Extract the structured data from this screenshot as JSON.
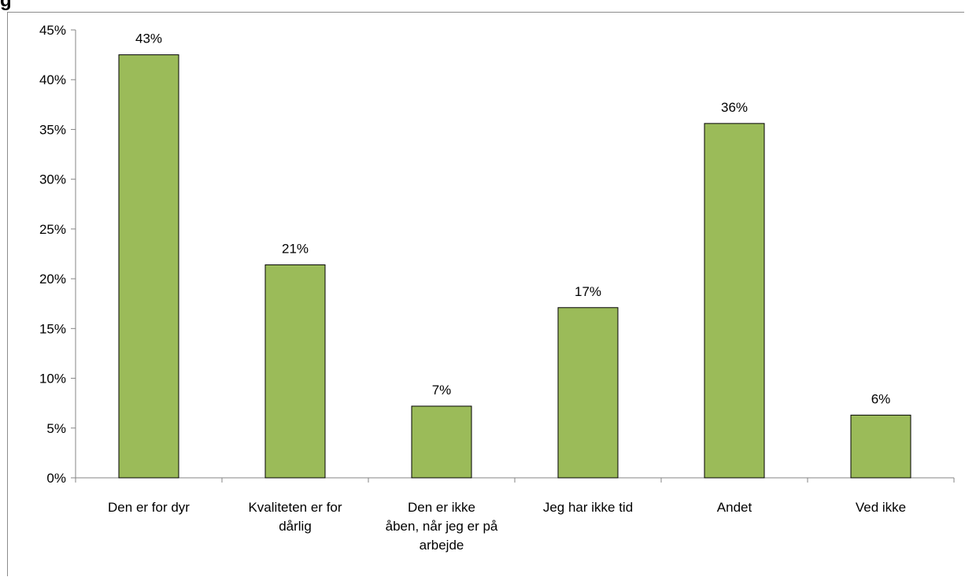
{
  "header": {
    "truncated_title": "g"
  },
  "chart_data": {
    "type": "bar",
    "title": "",
    "xlabel": "",
    "ylabel": "",
    "ylim": [
      0,
      45
    ],
    "y_ticks": [
      0,
      5,
      10,
      15,
      20,
      25,
      30,
      35,
      40,
      45
    ],
    "y_tick_labels": [
      "0%",
      "5%",
      "10%",
      "15%",
      "20%",
      "25%",
      "30%",
      "35%",
      "40%",
      "45%"
    ],
    "grid": false,
    "categories": [
      [
        "Den er for dyr"
      ],
      [
        "Kvaliteten er for",
        "dårlig"
      ],
      [
        "Den er ikke",
        "åben, når jeg er på",
        "arbejde"
      ],
      [
        "Jeg har ikke tid"
      ],
      [
        "Andet"
      ],
      [
        "Ved ikke"
      ]
    ],
    "values": [
      42.5,
      21.4,
      7.2,
      17.1,
      35.6,
      6.3
    ],
    "data_labels": [
      "43%",
      "21%",
      "7%",
      "17%",
      "36%",
      "6%"
    ],
    "colors": {
      "bar": "#9bbb59",
      "bar_stroke": "#000000",
      "axis": "#868686"
    }
  }
}
